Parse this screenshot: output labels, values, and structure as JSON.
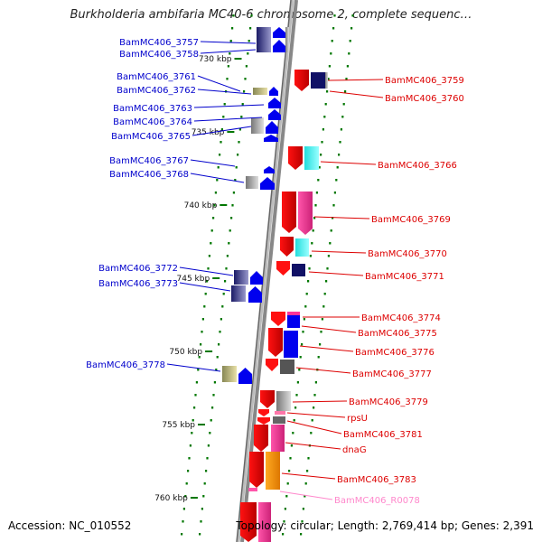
{
  "title": "Burkholderia ambifaria MC40-6 chromosome 2, complete sequenc…",
  "accession_text": "Accession: NC_010552",
  "topology_text": "Topology: circular; Length: 2,769,414 bp; Genes: 2,391",
  "colors": {
    "left_label": "#0000cc",
    "right_label": "#dd0000",
    "rna_label": "#ff88cc",
    "backbone": "#888888",
    "tick": "#007700"
  },
  "kbp_ticks": [
    "730 kbp",
    "735 kbp",
    "740 kbp",
    "745 kbp",
    "750 kbp",
    "755 kbp",
    "760 kbp"
  ],
  "left_genes": [
    "BamMC406_3757",
    "BamMC406_3758",
    "BamMC406_3761",
    "BamMC406_3762",
    "BamMC406_3763",
    "BamMC406_3764",
    "BamMC406_3765",
    "BamMC406_3767",
    "BamMC406_3768",
    "BamMC406_3772",
    "BamMC406_3773",
    "BamMC406_3778"
  ],
  "right_genes": [
    "BamMC406_3759",
    "BamMC406_3760",
    "BamMC406_3766",
    "BamMC406_3769",
    "BamMC406_3770",
    "BamMC406_3771",
    "BamMC406_3774",
    "BamMC406_3775",
    "BamMC406_3776",
    "BamMC406_3777",
    "BamMC406_3779",
    "rpsU",
    "BamMC406_3781",
    "dnaG",
    "BamMC406_3783"
  ],
  "rna_genes": [
    "BamMC406_R0078"
  ]
}
